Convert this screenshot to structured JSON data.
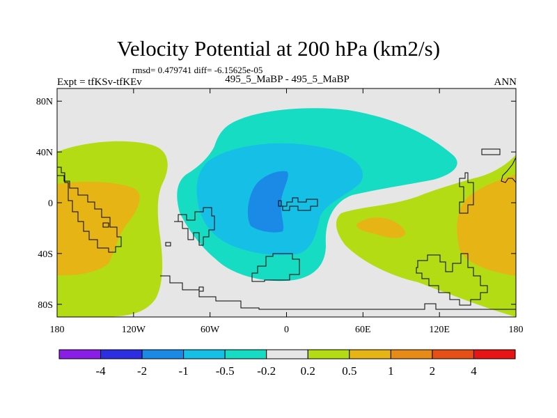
{
  "chart_data": {
    "type": "heatmap",
    "title": "Velocity Potential at 200 hPa (km2/s)",
    "stats": "rmsd= 0.479741 diff= -6.15625e-05",
    "left_label": "Expt = tfKSv-tfKEv",
    "center_label": "495_5_MaBP - 495_5_MaBP",
    "right_label": "ANN",
    "x_ticks": [
      "180",
      "120W",
      "60W",
      "0",
      "60E",
      "120E",
      "180"
    ],
    "x_tick_values": [
      -180,
      -120,
      -60,
      0,
      60,
      120,
      180
    ],
    "y_ticks": [
      "80N",
      "40N",
      "0",
      "40S",
      "80S"
    ],
    "y_tick_values": [
      80,
      40,
      0,
      -40,
      -80
    ],
    "xlim": [
      -180,
      180
    ],
    "ylim": [
      -90,
      90
    ],
    "colorbar": {
      "labels": [
        "-4",
        "-2",
        "-1",
        "-0.5",
        "-0.2",
        "0.2",
        "0.5",
        "1",
        "2",
        "4"
      ],
      "colors": [
        "#8a1de6",
        "#2d2ee0",
        "#1a8ae6",
        "#16bfe6",
        "#16dcc4",
        "#e6e6e6",
        "#b4dc14",
        "#e6b414",
        "#e68a18",
        "#e65016",
        "#e61414"
      ]
    },
    "regions": [
      {
        "level": "0.2 to 0.5",
        "color": "#b4dc14",
        "location": "eastern Pacific / Americas west coast"
      },
      {
        "level": "0.5 to 1",
        "color": "#e6b414",
        "location": "Pacific dateline tropics (west edge)"
      },
      {
        "level": "0.2 to 0.5",
        "color": "#b4dc14",
        "location": "Africa / Indian Ocean to Maritime Continent"
      },
      {
        "level": "0.5 to 1",
        "color": "#e6b414",
        "location": "Indian Ocean and western Pacific"
      },
      {
        "level": "-0.5 to -0.2",
        "color": "#16dcc4",
        "location": "South America / Atlantic"
      },
      {
        "level": "-1 to -0.5",
        "color": "#16bfe6",
        "location": "tropical Atlantic"
      },
      {
        "level": "-2 to -1",
        "color": "#1a8ae6",
        "location": "equatorial Atlantic / West Africa"
      }
    ]
  }
}
